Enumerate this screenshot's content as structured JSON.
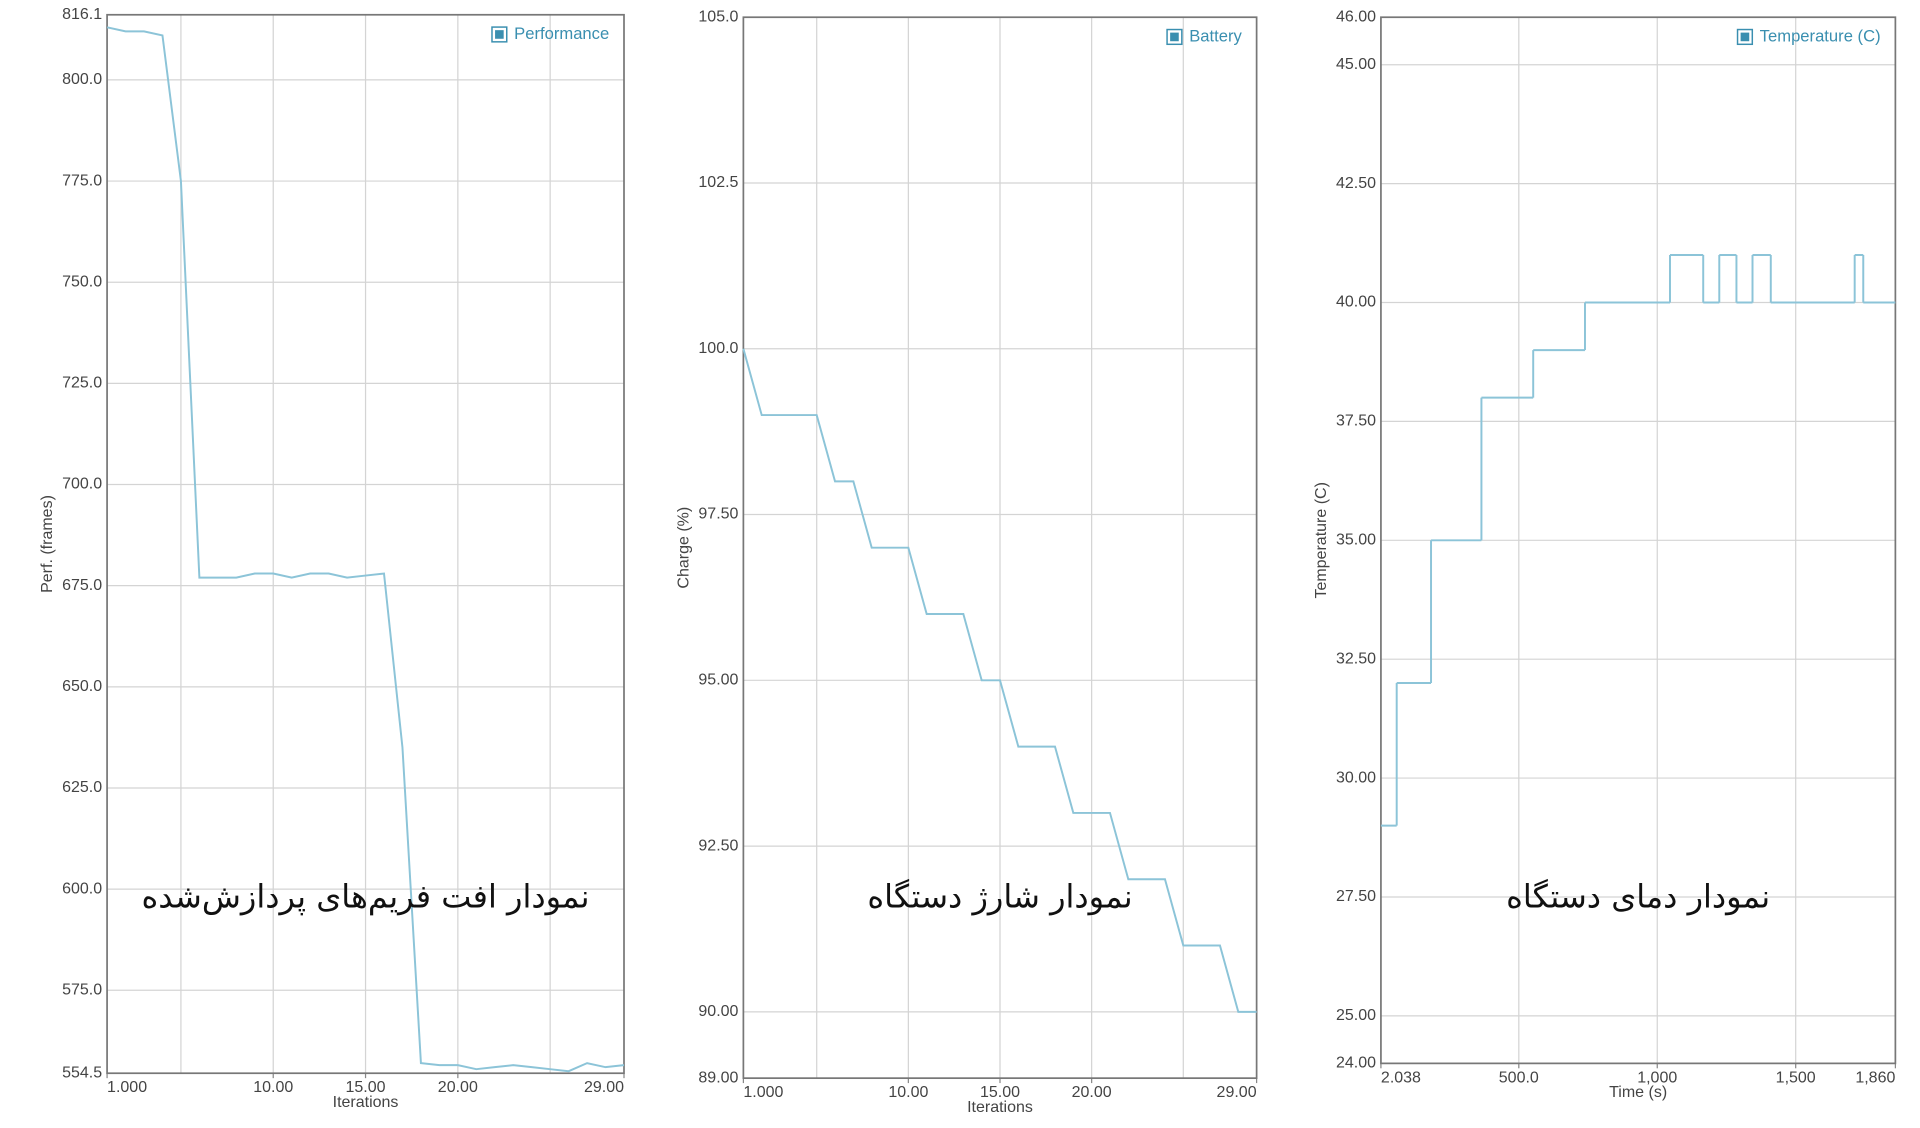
{
  "chart_data": [
    {
      "type": "line",
      "annotation": "نمودار افت فریم‌های پردازش‌شده",
      "ylabel": "Perf. (frames)",
      "xlabel": "Iterations",
      "x": [
        1,
        2,
        3,
        4,
        5,
        6,
        7,
        8,
        9,
        10,
        11,
        12,
        13,
        14,
        15,
        16,
        17,
        18,
        19,
        20,
        21,
        22,
        23,
        24,
        25,
        26,
        27,
        28,
        29
      ],
      "series": [
        {
          "name": "Performance",
          "color": "#8cc4d8",
          "values": [
            813,
            812,
            812,
            811,
            775,
            677,
            677,
            677,
            678,
            678,
            677,
            678,
            678,
            677,
            677.5,
            678,
            635,
            557,
            556.5,
            556.5,
            555.5,
            556,
            556.5,
            556,
            555.5,
            555,
            557,
            556,
            556.5
          ]
        }
      ],
      "xlim": [
        1,
        29
      ],
      "xticks": [
        {
          "value": 1,
          "label": "1.000"
        },
        {
          "value": 10,
          "label": "10.00"
        },
        {
          "value": 15,
          "label": "15.00"
        },
        {
          "value": 20,
          "label": "20.00"
        },
        {
          "value": 29,
          "label": "29.00"
        }
      ],
      "xgrid": [
        5,
        10,
        15,
        20,
        25
      ],
      "ylim": [
        554.5,
        816.1
      ],
      "yticks": [
        554.5,
        {
          "value": 575,
          "label": "575.0"
        },
        {
          "value": 600,
          "label": "600.0"
        },
        {
          "value": 625,
          "label": "625.0"
        },
        {
          "value": 650,
          "label": "650.0"
        },
        {
          "value": 675,
          "label": "675.0"
        },
        {
          "value": 700,
          "label": "700.0"
        },
        {
          "value": 725,
          "label": "725.0"
        },
        {
          "value": 750,
          "label": "750.0"
        },
        {
          "value": 775,
          "label": "775.0"
        },
        {
          "value": 800,
          "label": "800.0"
        },
        816.1
      ],
      "grid": true,
      "legend": "top-right"
    },
    {
      "type": "line",
      "annotation": "نمودار شارژ دستگاه",
      "ylabel": "Charge (%)",
      "xlabel": "Iterations",
      "x": [
        1,
        2,
        3,
        4,
        5,
        6,
        7,
        8,
        9,
        10,
        11,
        12,
        13,
        14,
        15,
        16,
        17,
        18,
        19,
        20,
        21,
        22,
        23,
        24,
        25,
        26,
        27,
        28,
        29
      ],
      "series": [
        {
          "name": "Battery",
          "color": "#8cc4d8",
          "values": [
            100,
            99,
            99,
            99,
            99,
            98,
            98,
            97,
            97,
            97,
            96,
            96,
            96,
            95,
            95,
            94,
            94,
            94,
            93,
            93,
            93,
            92,
            92,
            92,
            91,
            91,
            91,
            90,
            90
          ]
        }
      ],
      "xlim": [
        1,
        29
      ],
      "xticks": [
        {
          "value": 1,
          "label": "1.000"
        },
        {
          "value": 10,
          "label": "10.00"
        },
        {
          "value": 15,
          "label": "15.00"
        },
        {
          "value": 20,
          "label": "20.00"
        },
        {
          "value": 29,
          "label": "29.00"
        }
      ],
      "xgrid": [
        5,
        10,
        15,
        20,
        25
      ],
      "ylim": [
        89,
        105
      ],
      "yticks": [
        {
          "value": 89,
          "label": "89.00"
        },
        {
          "value": 90,
          "label": "90.00"
        },
        {
          "value": 92.5,
          "label": "92.50"
        },
        {
          "value": 95,
          "label": "95.00"
        },
        {
          "value": 97.5,
          "label": "97.50"
        },
        {
          "value": 100,
          "label": "100.0"
        },
        102.5,
        {
          "value": 105,
          "label": "105.0"
        }
      ],
      "grid": true,
      "legend": "top-right"
    },
    {
      "type": "line",
      "step": "post",
      "annotation": "نمودار دمای دستگاه",
      "ylabel": "Temperature (C)",
      "xlabel": "Time (s)",
      "x": [
        2.038,
        59,
        183,
        365,
        552,
        739,
        1046,
        1166,
        1224,
        1286,
        1344,
        1410,
        1713,
        1744,
        1860
      ],
      "series": [
        {
          "name": "Temperature (C)",
          "color": "#8cc4d8",
          "values": [
            29,
            32,
            35,
            38,
            39,
            40,
            41,
            40,
            41,
            40,
            41,
            40,
            41,
            40,
            40
          ]
        }
      ],
      "xlim": [
        2.038,
        1860
      ],
      "xticks": [
        2.038,
        {
          "value": 500,
          "label": "500.0"
        },
        {
          "value": 1000,
          "label": "1,000"
        },
        {
          "value": 1500,
          "label": "1,500"
        },
        {
          "value": 1860,
          "label": "1,860"
        }
      ],
      "xgrid": [
        500,
        1000,
        1500
      ],
      "ylim": [
        24,
        46
      ],
      "yticks": [
        {
          "value": 24,
          "label": "24.00"
        },
        {
          "value": 25,
          "label": "25.00"
        },
        {
          "value": 27.5,
          "label": "27.50"
        },
        {
          "value": 30,
          "label": "30.00"
        },
        {
          "value": 32.5,
          "label": "32.50"
        },
        {
          "value": 35,
          "label": "35.00"
        },
        {
          "value": 37.5,
          "label": "37.50"
        },
        {
          "value": 40,
          "label": "40.00"
        },
        {
          "value": 42.5,
          "label": "42.50"
        },
        {
          "value": 45,
          "label": "45.00"
        },
        {
          "value": 46,
          "label": "46.00"
        }
      ],
      "grid": true,
      "legend": "top-right"
    }
  ]
}
